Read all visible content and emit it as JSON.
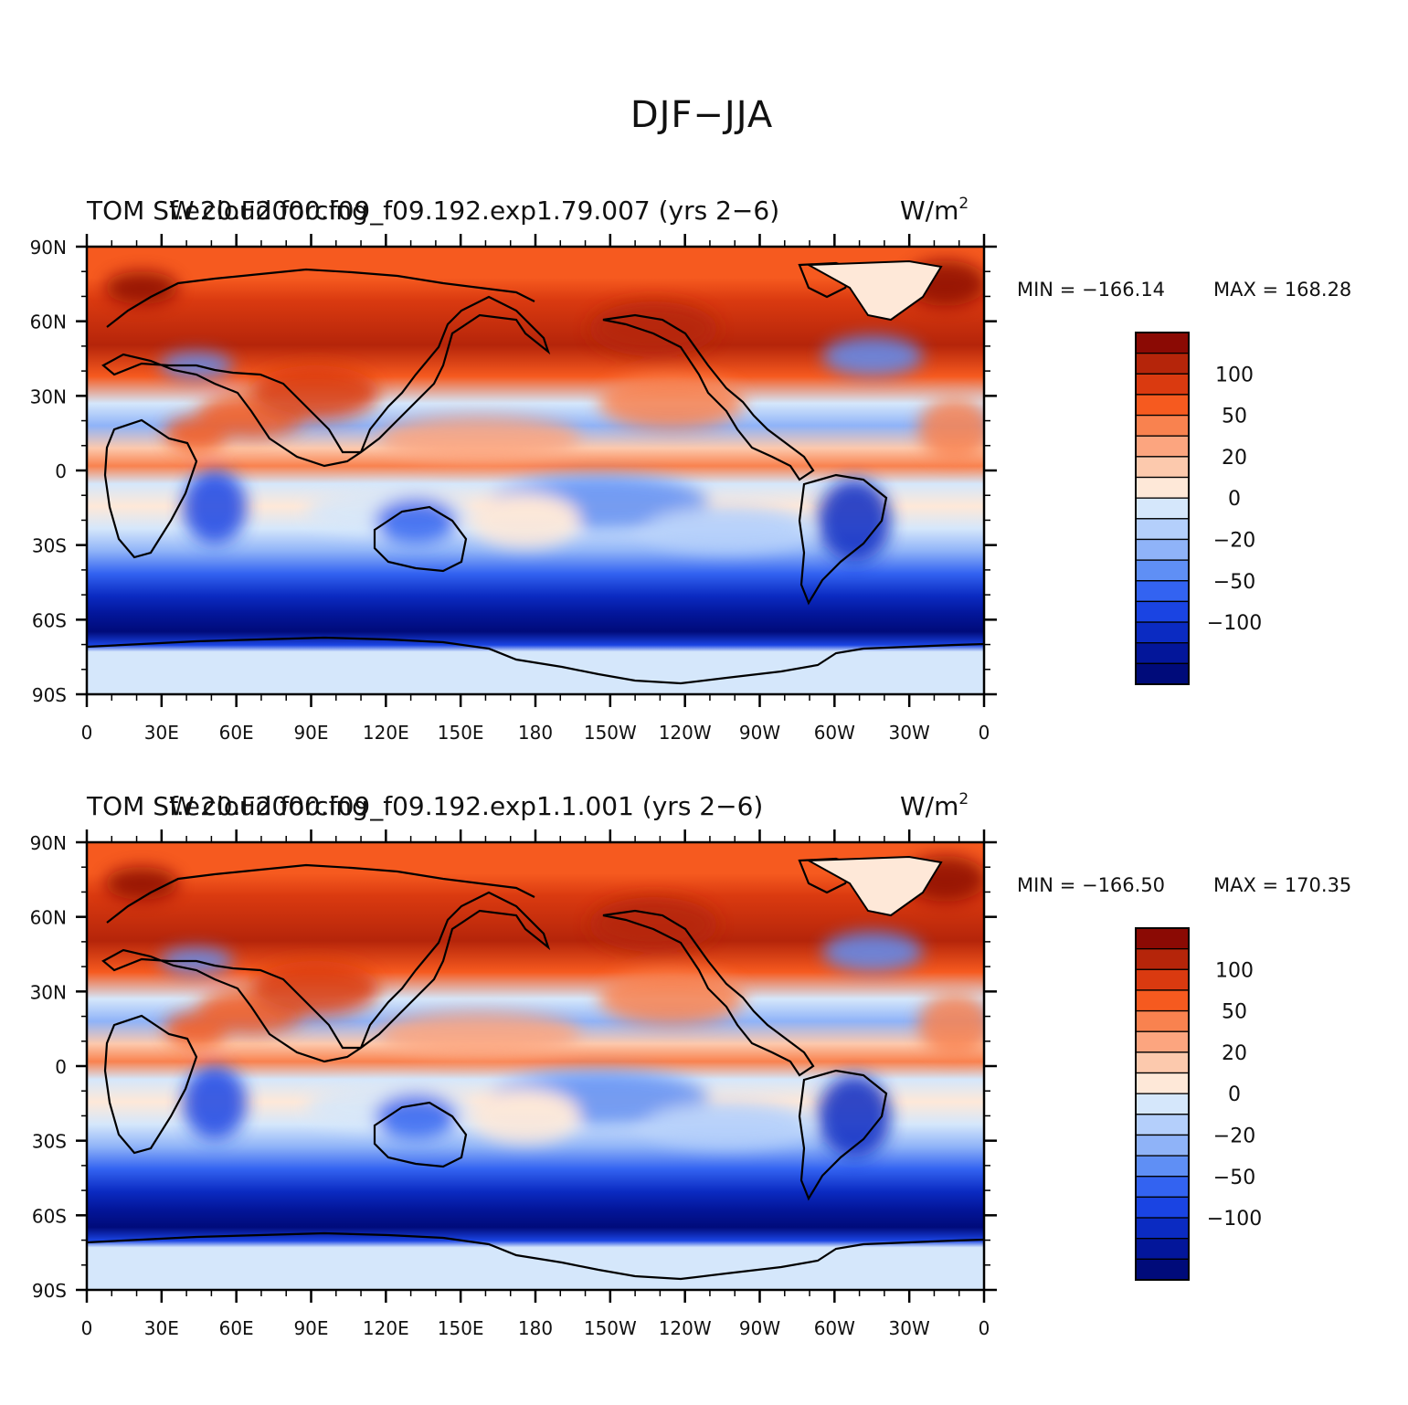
{
  "figure": {
    "title": "DJF-JJA",
    "units": "W/m",
    "units_superscript": "2"
  },
  "axes": {
    "lat_ticks": [
      "90N",
      "60N",
      "30N",
      "0",
      "30S",
      "60S",
      "90S"
    ],
    "lon_ticks": [
      "0",
      "30E",
      "60E",
      "90E",
      "120E",
      "150E",
      "180",
      "150W",
      "120W",
      "90W",
      "60W",
      "30W",
      "0"
    ]
  },
  "colorbar": {
    "labels": [
      "100",
      "50",
      "20",
      "0",
      "-20",
      "-50",
      "-100"
    ],
    "colors": [
      "#8b0a04",
      "#b5250a",
      "#da3a10",
      "#f65a1f",
      "#f9824f",
      "#fca57f",
      "#fcc9ad",
      "#fee8d8",
      "#d5e7fb",
      "#b4cffb",
      "#8fb3f8",
      "#5f8ff5",
      "#3363f1",
      "#1a44e3",
      "#0b2bc2",
      "#03169a",
      "#000b7a"
    ]
  },
  "panels": [
    {
      "title_left": "TOM SW cloud forcing",
      "title_right": "f.e20.F2000.f09_f09.192.exp1.79.007 (yrs 2-6)",
      "min_label": "MIN = -166.14",
      "max_label": "MAX = 168.28"
    },
    {
      "title_left": "TOM SW cloud forcing",
      "title_right": "f.e20.F2000.f09_f09.192.exp1.1.001 (yrs 2-6)",
      "min_label": "MIN = -166.50",
      "max_label": "MAX = 170.35"
    }
  ],
  "chart_data": [
    {
      "type": "heatmap",
      "title": "f.e20.F2000.f09_f09.192.exp1.79.007 (yrs 2-6)",
      "field": "TOM SW cloud forcing",
      "units": "W/m2",
      "min": -166.14,
      "max": 168.28,
      "xlim": [
        0,
        360
      ],
      "ylim": [
        -90,
        90
      ],
      "levels": [
        -100,
        -50,
        -20,
        0,
        20,
        50,
        100
      ]
    },
    {
      "type": "heatmap",
      "title": "f.e20.F2000.f09_f09.192.exp1.1.001 (yrs 2-6)",
      "field": "TOM SW cloud forcing",
      "units": "W/m2",
      "min": -166.5,
      "max": 170.35,
      "xlim": [
        0,
        360
      ],
      "ylim": [
        -90,
        90
      ],
      "levels": [
        -100,
        -50,
        -20,
        0,
        20,
        50,
        100
      ]
    }
  ]
}
